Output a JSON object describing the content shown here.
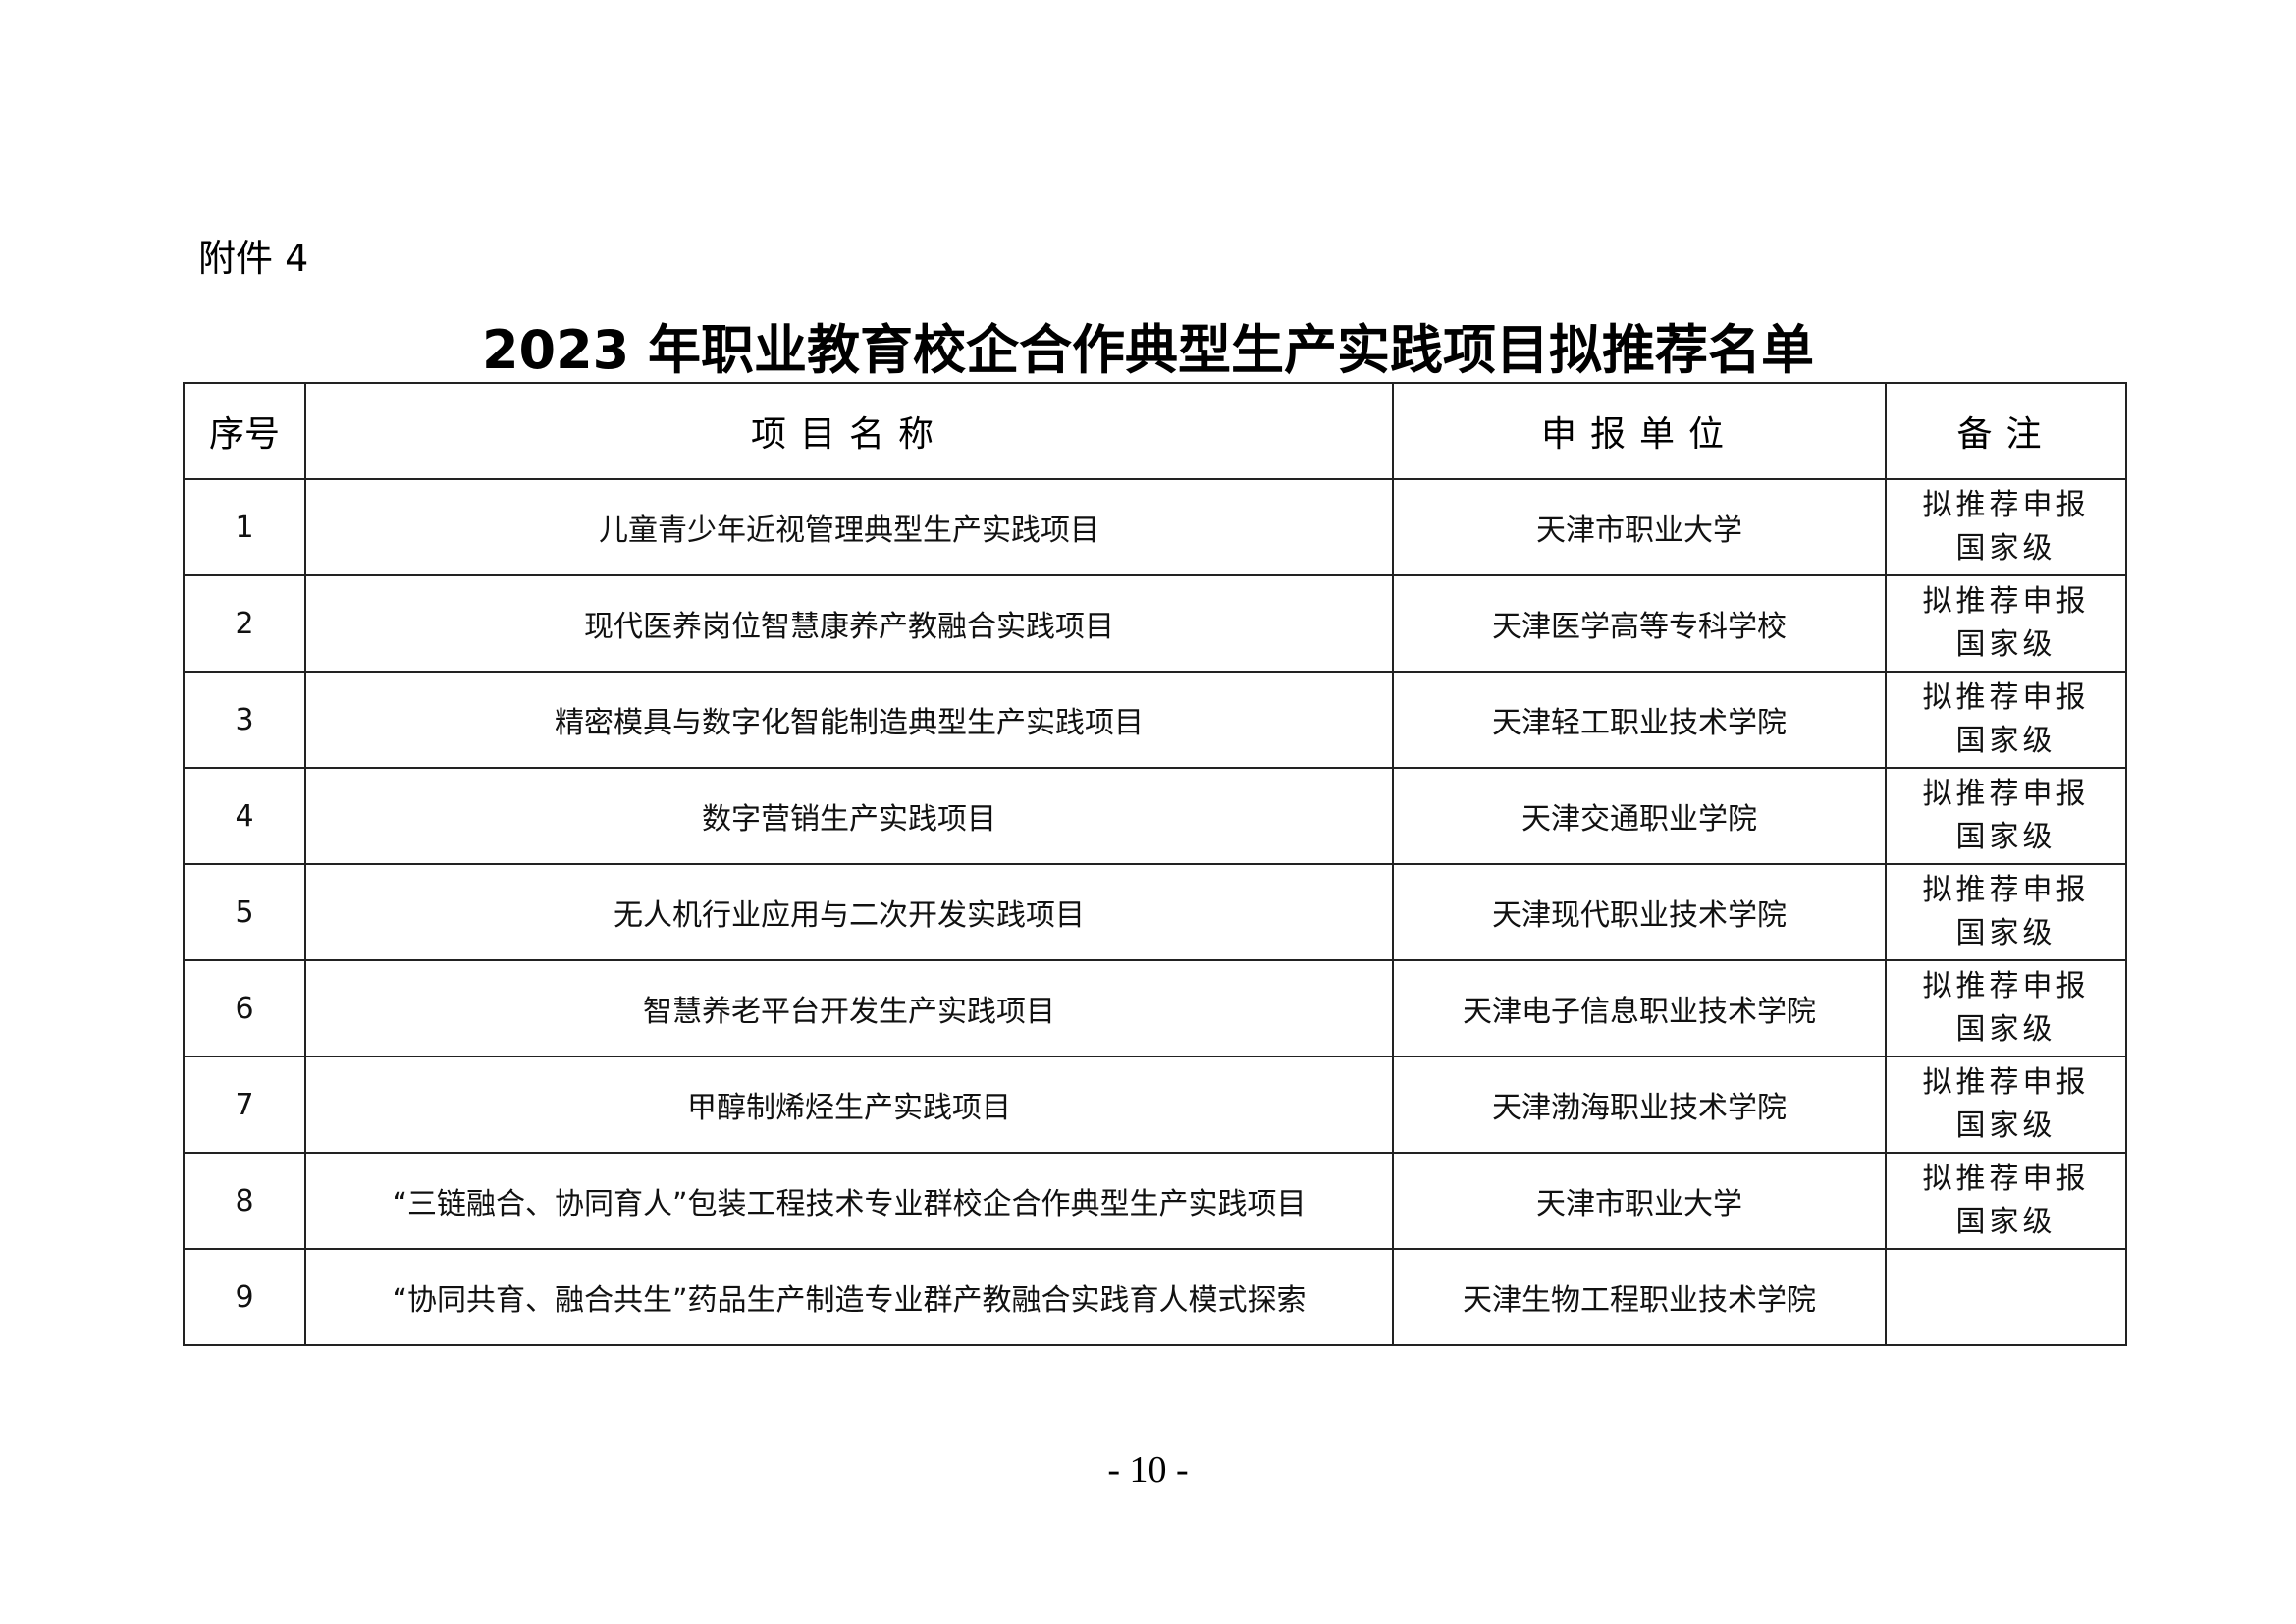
{
  "attachment_label": "附件 4",
  "title": "2023 年职业教育校企合作典型生产实践项目拟推荐名单",
  "table": {
    "headers": [
      "序号",
      "项目名称",
      "申报单位",
      "备注"
    ],
    "rows": [
      {
        "no": "1",
        "name": "儿童青少年近视管理典型生产实践项目",
        "unit": "天津市职业大学",
        "note1": "拟推荐申报",
        "note2": "国家级"
      },
      {
        "no": "2",
        "name": "现代医养岗位智慧康养产教融合实践项目",
        "unit": "天津医学高等专科学校",
        "note1": "拟推荐申报",
        "note2": "国家级"
      },
      {
        "no": "3",
        "name": "精密模具与数字化智能制造典型生产实践项目",
        "unit": "天津轻工职业技术学院",
        "note1": "拟推荐申报",
        "note2": "国家级"
      },
      {
        "no": "4",
        "name": "数字营销生产实践项目",
        "unit": "天津交通职业学院",
        "note1": "拟推荐申报",
        "note2": "国家级"
      },
      {
        "no": "5",
        "name": "无人机行业应用与二次开发实践项目",
        "unit": "天津现代职业技术学院",
        "note1": "拟推荐申报",
        "note2": "国家级"
      },
      {
        "no": "6",
        "name": "智慧养老平台开发生产实践项目",
        "unit": "天津电子信息职业技术学院",
        "note1": "拟推荐申报",
        "note2": "国家级"
      },
      {
        "no": "7",
        "name": "甲醇制烯烃生产实践项目",
        "unit": "天津渤海职业技术学院",
        "note1": "拟推荐申报",
        "note2": "国家级"
      },
      {
        "no": "8",
        "name": "“三链融合、协同育人”包装工程技术专业群校企合作典型生产实践项目",
        "unit": "天津市职业大学",
        "note1": "拟推荐申报",
        "note2": "国家级"
      },
      {
        "no": "9",
        "name": "“协同共育、融合共生”药品生产制造专业群产教融合实践育人模式探索",
        "unit": "天津生物工程职业技术学院",
        "note1": "",
        "note2": ""
      }
    ]
  },
  "page_number": "- 10 -"
}
